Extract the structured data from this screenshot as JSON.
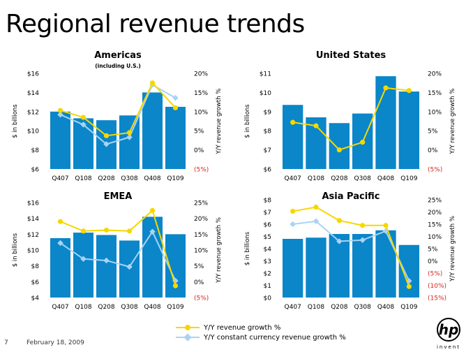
{
  "page": {
    "title": "Regional revenue trends",
    "page_number": "7",
    "date": "February 18, 2009",
    "logo_text": "hp",
    "logo_tagline": "invent"
  },
  "legend": {
    "items": [
      {
        "label": "Y/Y revenue growth %",
        "color": "#f5d800",
        "marker": "circle"
      },
      {
        "label": "Y/Y constant currency revenue growth %",
        "color": "#a9d3f5",
        "marker": "diamond"
      }
    ]
  },
  "colors": {
    "bar": "#0a86c9",
    "growth": "#f5d800",
    "cc_growth": "#a9d3f5",
    "negative_tick": "#d9261c"
  },
  "chart_data": [
    {
      "type": "bar",
      "title": "Americas",
      "subtitle": "(including U.S.)",
      "categories": [
        "Q407",
        "Q108",
        "Q208",
        "Q308",
        "Q408",
        "Q109"
      ],
      "ylabel": "$ in billions",
      "y2label": "Y/Y revenue growth %",
      "ylim": [
        6,
        16
      ],
      "yticks": [
        "$6",
        "$8",
        "$10",
        "$12",
        "$14",
        "$16"
      ],
      "y2lim": [
        -5,
        20
      ],
      "y2ticks": [
        "(5%)",
        "0%",
        "5%",
        "10%",
        "15%",
        "20%"
      ],
      "values": [
        12.0,
        11.3,
        11.1,
        11.6,
        14.0,
        12.5
      ],
      "series": [
        {
          "name": "Y/Y revenue growth %",
          "values": [
            10.3,
            8.5,
            3.7,
            4.5,
            17.5,
            11.0
          ]
        },
        {
          "name": "Y/Y constant currency revenue growth %",
          "values": [
            9.2,
            6.6,
            1.5,
            3.3,
            17.0,
            13.6
          ]
        }
      ]
    },
    {
      "type": "bar",
      "title": "United States",
      "subtitle": "",
      "categories": [
        "Q407",
        "Q108",
        "Q208",
        "Q308",
        "Q408",
        "Q109"
      ],
      "ylabel": "$ in billions",
      "y2label": "Y/Y revenue growth %",
      "ylim": [
        6,
        11
      ],
      "yticks": [
        "$6",
        "$7",
        "$8",
        "$9",
        "$10",
        "$11"
      ],
      "y2lim": [
        -5,
        20
      ],
      "y2ticks": [
        "(5%)",
        "0%",
        "5%",
        "10%",
        "15%",
        "20%"
      ],
      "values": [
        9.35,
        8.7,
        8.4,
        8.9,
        10.85,
        10.05
      ],
      "series": [
        {
          "name": "Y/Y revenue growth %",
          "values": [
            7.2,
            6.3,
            0.0,
            2.0,
            16.2,
            15.5
          ]
        }
      ]
    },
    {
      "type": "bar",
      "title": "EMEA",
      "subtitle": "",
      "categories": [
        "Q407",
        "Q108",
        "Q208",
        "Q308",
        "Q408",
        "Q109"
      ],
      "ylabel": "$ in billions",
      "y2label": "Y/Y revenue growth %",
      "ylim": [
        4,
        16
      ],
      "yticks": [
        "$4",
        "$6",
        "$8",
        "$10",
        "$12",
        "$14",
        "$16"
      ],
      "y2lim": [
        -5,
        25
      ],
      "y2ticks": [
        "(5%)",
        "0%",
        "5%",
        "10%",
        "15%",
        "20%",
        "25%"
      ],
      "values": [
        11.5,
        12.2,
        11.9,
        11.2,
        14.2,
        12.0
      ],
      "series": [
        {
          "name": "Y/Y revenue growth %",
          "values": [
            19.0,
            16.0,
            16.3,
            16.0,
            22.5,
            -1.3
          ]
        },
        {
          "name": "Y/Y constant currency revenue growth %",
          "values": [
            12.2,
            7.2,
            6.7,
            4.7,
            15.8,
            0.3
          ]
        }
      ]
    },
    {
      "type": "bar",
      "title": "Asia Pacific",
      "subtitle": "",
      "categories": [
        "Q407",
        "Q108",
        "Q208",
        "Q308",
        "Q408",
        "Q109"
      ],
      "ylabel": "$ in billions",
      "y2label": "Y/Y revenue growth %",
      "ylim": [
        0,
        8
      ],
      "yticks": [
        "$0",
        "$1",
        "$2",
        "$3",
        "$4",
        "$5",
        "$6",
        "$7",
        "$8"
      ],
      "y2lim": [
        -15,
        25
      ],
      "y2ticks": [
        "(15%)",
        "(10%)",
        "(5%)",
        "0%",
        "5%",
        "10%",
        "15%",
        "20%",
        "25%"
      ],
      "values": [
        4.8,
        4.9,
        5.2,
        5.2,
        5.5,
        4.3
      ],
      "series": [
        {
          "name": "Y/Y revenue growth %",
          "values": [
            20.3,
            22.0,
            16.5,
            14.5,
            14.5,
            -10.5
          ]
        },
        {
          "name": "Y/Y constant currency revenue growth %",
          "values": [
            15.0,
            16.2,
            8.0,
            8.5,
            12.2,
            -8.2
          ]
        }
      ]
    }
  ]
}
